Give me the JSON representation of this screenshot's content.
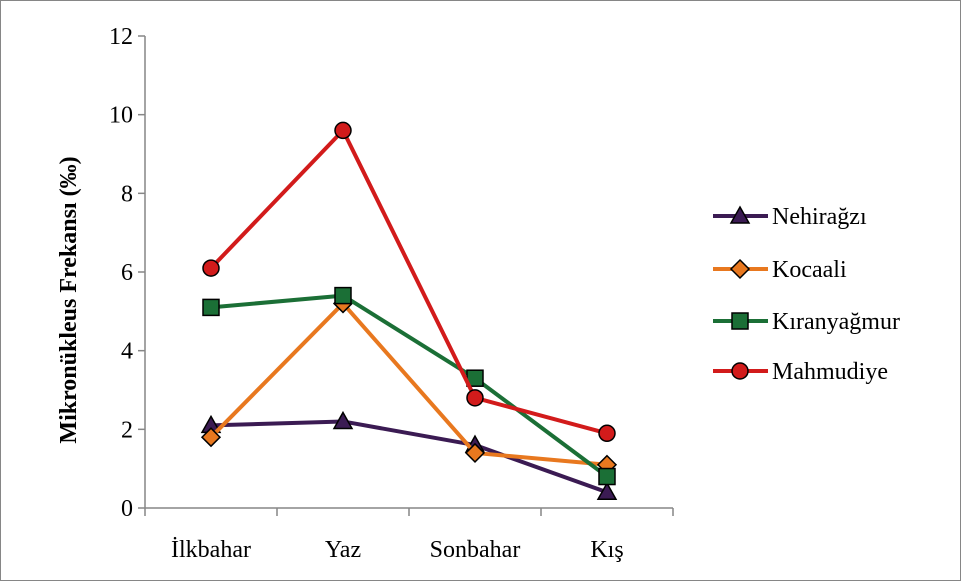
{
  "chart_data": {
    "type": "line",
    "title": "",
    "xlabel": "",
    "ylabel": "Mikronükleus Frekansı (‰)",
    "categories": [
      "İlkbahar",
      "Yaz",
      "Sonbahar",
      "Kış"
    ],
    "ylim": [
      0,
      12
    ],
    "yticks": [
      0,
      2,
      4,
      6,
      8,
      10,
      12
    ],
    "ytick_labels": [
      "0",
      "2",
      "4",
      "6",
      "8",
      "10",
      "12"
    ],
    "grid": false,
    "legend_position": "right",
    "series": [
      {
        "name": "Nehirağzı",
        "values": [
          2.1,
          2.2,
          1.6,
          0.4
        ],
        "color": "#3b1b53",
        "marker": "triangle"
      },
      {
        "name": "Kocaali",
        "values": [
          1.8,
          5.2,
          1.4,
          1.1
        ],
        "color": "#e8781f",
        "marker": "diamond"
      },
      {
        "name": "Kıranyağmur",
        "values": [
          5.1,
          5.4,
          3.3,
          0.8
        ],
        "color": "#1b6f36",
        "marker": "square"
      },
      {
        "name": "Mahmudiye",
        "values": [
          6.1,
          9.6,
          2.8,
          1.9
        ],
        "color": "#d21b1b",
        "marker": "circle"
      }
    ]
  }
}
